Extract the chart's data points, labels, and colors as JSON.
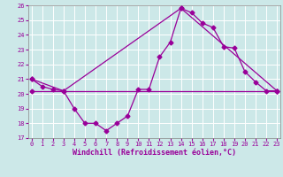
{
  "bg_color": "#cce8e8",
  "grid_color": "#ffffff",
  "line_color": "#990099",
  "xlim_min": -0.3,
  "xlim_max": 23.3,
  "ylim_min": 17,
  "ylim_max": 26,
  "yticks": [
    17,
    18,
    19,
    20,
    21,
    22,
    23,
    24,
    25,
    26
  ],
  "xticks": [
    0,
    1,
    2,
    3,
    4,
    5,
    6,
    7,
    8,
    9,
    10,
    11,
    12,
    13,
    14,
    15,
    16,
    17,
    18,
    19,
    20,
    21,
    22,
    23
  ],
  "series1_x": [
    0,
    1,
    2,
    3,
    4,
    5,
    6,
    7,
    8,
    9,
    10,
    11,
    12,
    13,
    14,
    15,
    16,
    17,
    18,
    19,
    20,
    21,
    22,
    23
  ],
  "series1_y": [
    21.0,
    20.5,
    20.3,
    20.2,
    19.0,
    18.0,
    18.0,
    17.5,
    18.0,
    18.5,
    20.3,
    20.3,
    22.5,
    23.5,
    25.8,
    25.5,
    24.8,
    24.5,
    23.2,
    23.1,
    21.5,
    20.8,
    20.2,
    20.2
  ],
  "series2_x": [
    0,
    3,
    14,
    23
  ],
  "series2_y": [
    21.0,
    20.2,
    25.8,
    20.2
  ],
  "series3_x": [
    0,
    23
  ],
  "series3_y": [
    20.2,
    20.2
  ],
  "xlabel": "Windchill (Refroidissement éolien,°C)",
  "marker": "D",
  "markersize": 2.5,
  "linewidth": 0.9,
  "tick_fontsize": 5.0,
  "xlabel_fontsize": 6.0
}
